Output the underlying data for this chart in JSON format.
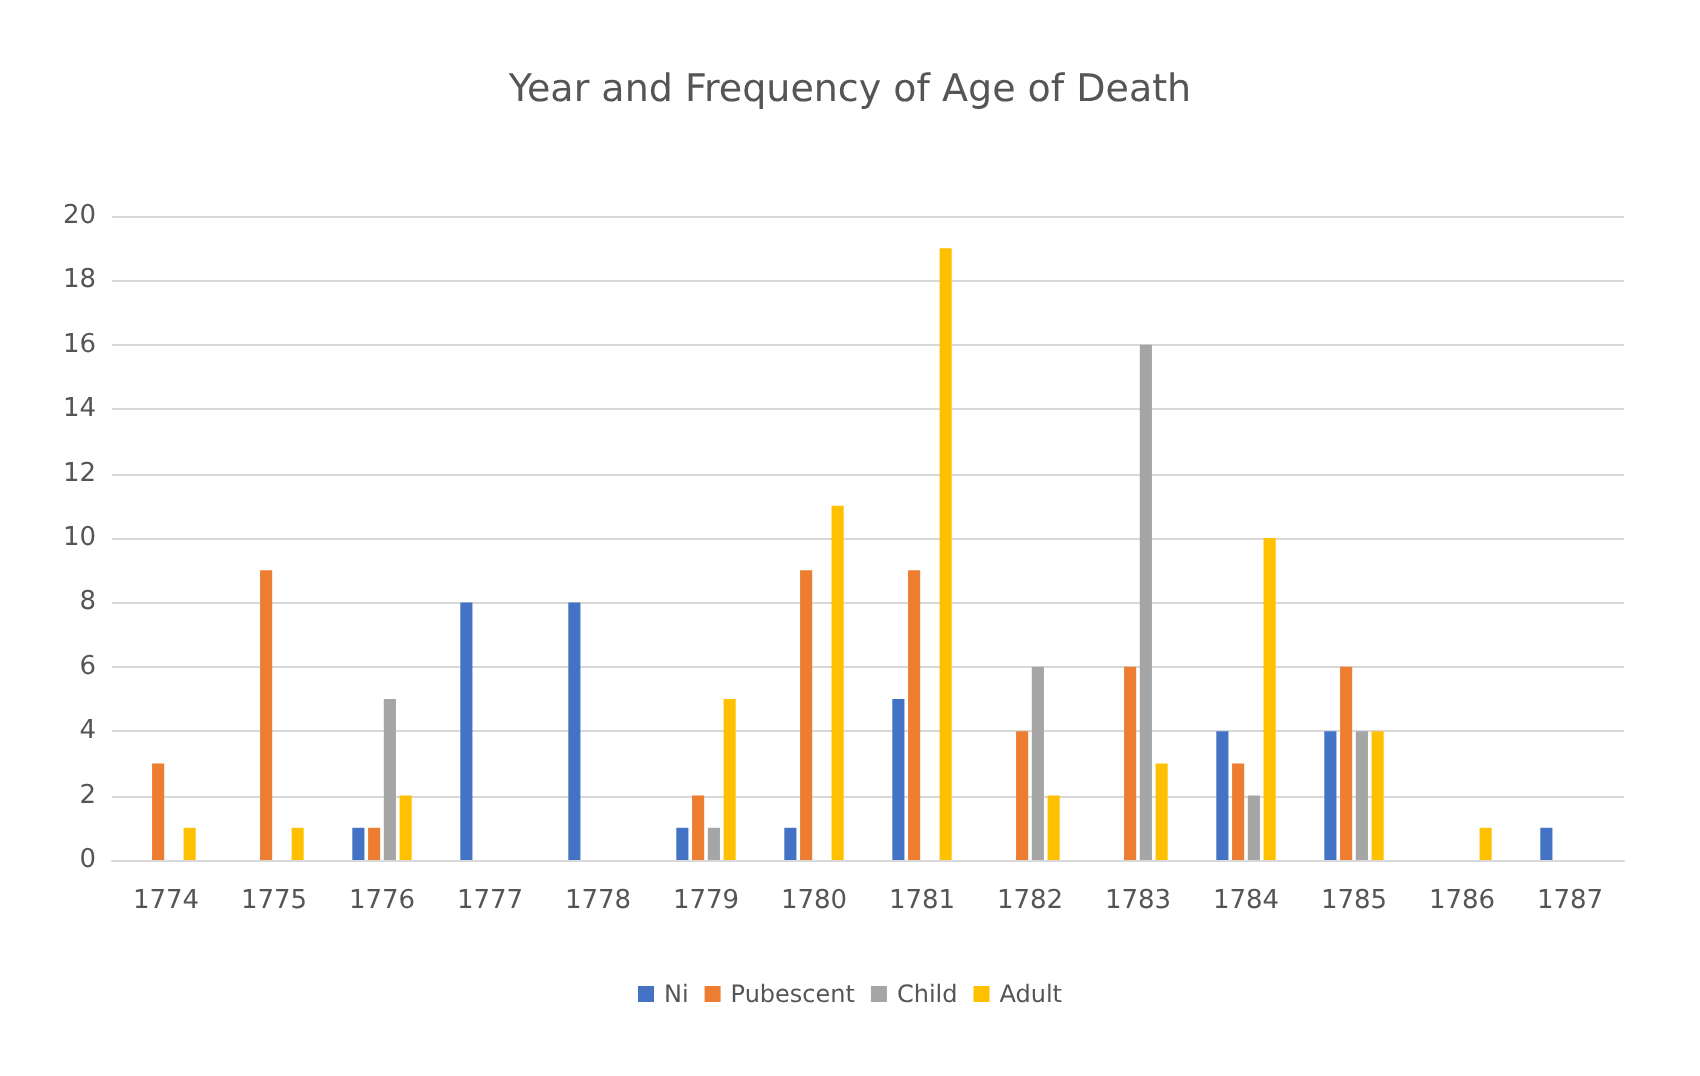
{
  "chart_data": {
    "type": "bar",
    "title": "Year and Frequency of Age of Death",
    "categories": [
      "1774",
      "1775",
      "1776",
      "1777",
      "1778",
      "1779",
      "1780",
      "1781",
      "1782",
      "1783",
      "1784",
      "1785",
      "1786",
      "1787"
    ],
    "series": [
      {
        "name": "Ni",
        "color": "#4472c4",
        "values": [
          0,
          0,
          1,
          8,
          8,
          1,
          1,
          5,
          0,
          0,
          4,
          4,
          0,
          1
        ]
      },
      {
        "name": "Pubescent",
        "color": "#ed7d31",
        "values": [
          3,
          9,
          1,
          0,
          0,
          2,
          9,
          9,
          4,
          6,
          3,
          6,
          0,
          0
        ]
      },
      {
        "name": "Child",
        "color": "#a5a5a5",
        "values": [
          0,
          0,
          5,
          0,
          0,
          1,
          0,
          0,
          6,
          16,
          2,
          4,
          0,
          0
        ]
      },
      {
        "name": "Adult",
        "color": "#ffc000",
        "values": [
          1,
          1,
          2,
          0,
          0,
          5,
          11,
          19,
          2,
          3,
          10,
          4,
          1,
          0
        ]
      }
    ],
    "ylim": [
      0,
      20
    ],
    "yticks": [
      0,
      2,
      4,
      6,
      8,
      10,
      12,
      14,
      16,
      18,
      20
    ],
    "grid": "y",
    "legend": "bottom"
  }
}
